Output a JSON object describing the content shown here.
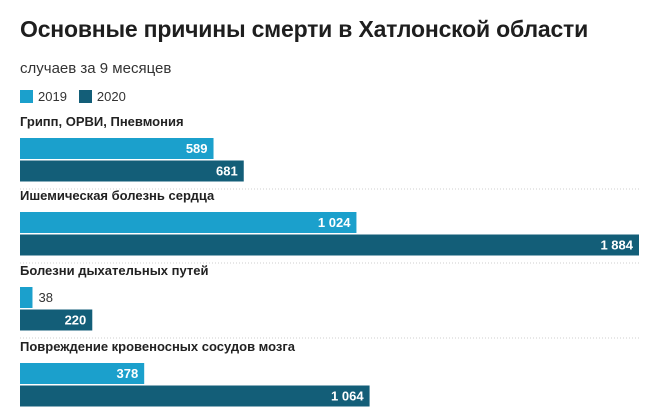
{
  "header": {
    "title": "Основные причины смерти в Хатлонской области",
    "subtitle": "случаев за 9 месяцев"
  },
  "chart_data": {
    "type": "bar",
    "orientation": "horizontal",
    "title": "Основные причины смерти в Хатлонской области",
    "subtitle": "случаев за 9 месяцев",
    "categories": [
      "Грипп, ОРВИ, Пневмония",
      "Ишемическая болезнь сердца",
      "Болезни дыхательных путей",
      "Повреждение кровеносных сосудов мозга"
    ],
    "series": [
      {
        "name": "2019",
        "color": "#1ba0cc",
        "values": [
          589,
          1024,
          38,
          378
        ],
        "labels": [
          "589",
          "1 024",
          "38",
          "378"
        ]
      },
      {
        "name": "2020",
        "color": "#135e78",
        "values": [
          681,
          1884,
          220,
          1064
        ],
        "labels": [
          "681",
          "1 884",
          "220",
          "1 064"
        ]
      }
    ],
    "xlim": [
      0,
      1884
    ],
    "legend_position": "top-left",
    "grid": false
  }
}
